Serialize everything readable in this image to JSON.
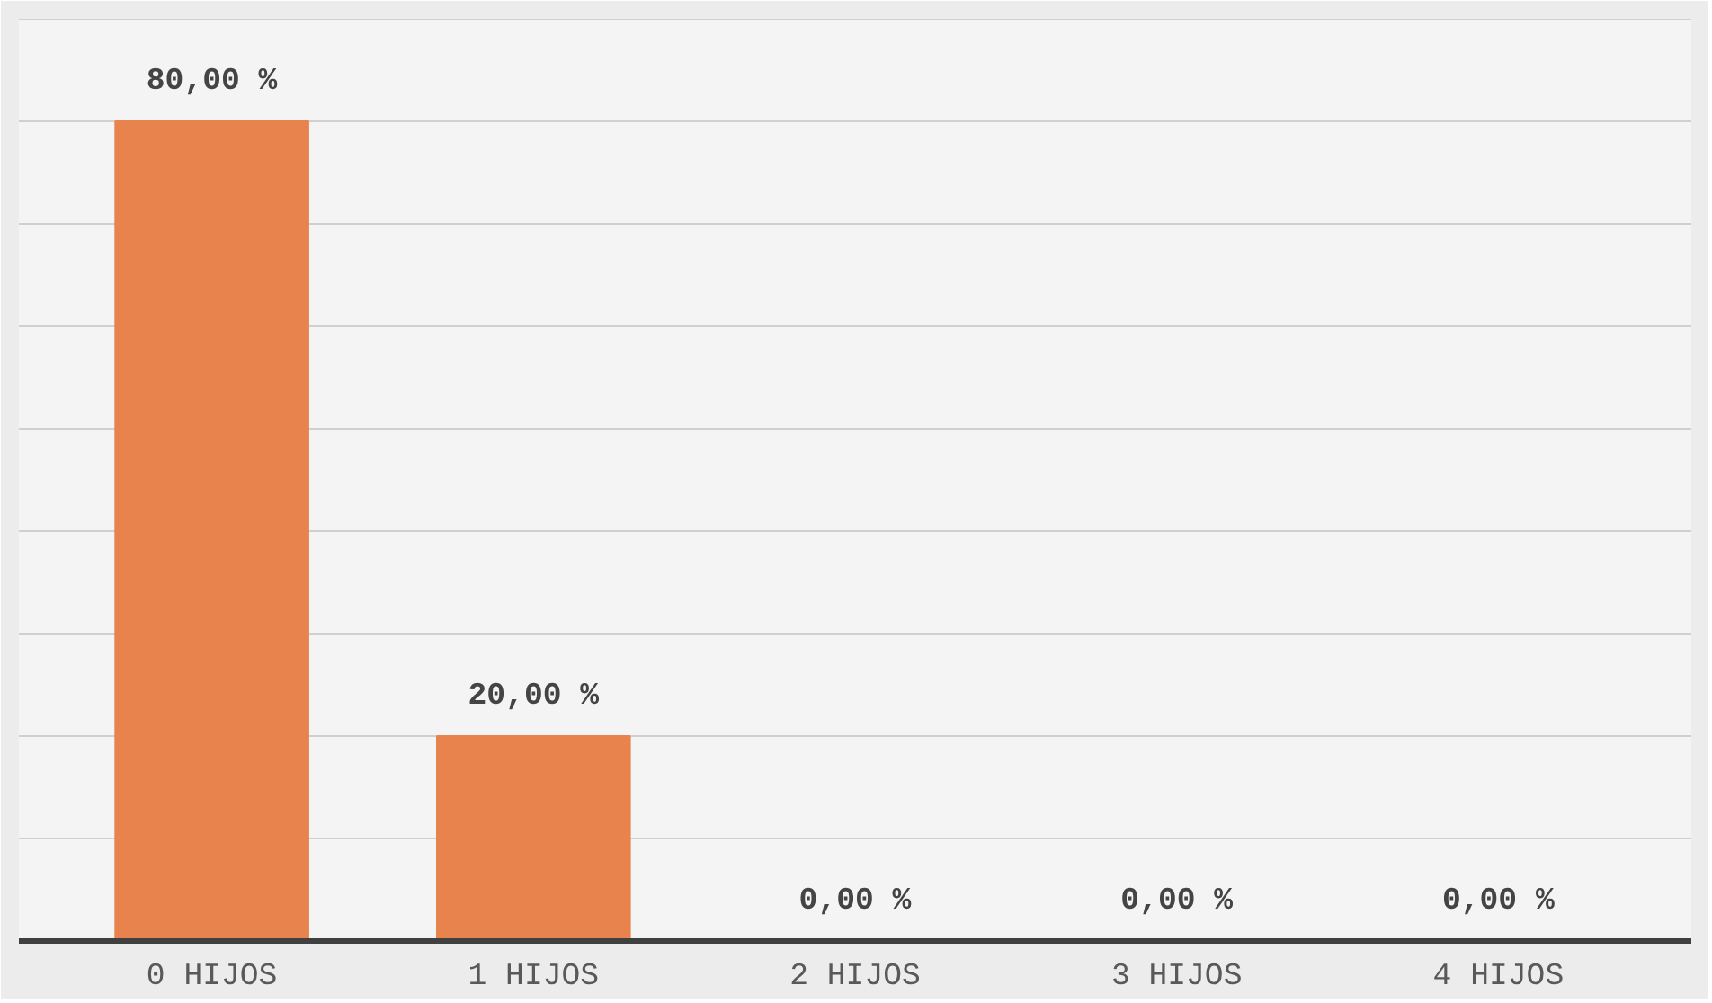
{
  "chart_data": {
    "type": "bar",
    "categories": [
      "0 HIJOS",
      "1 HIJOS",
      "2 HIJOS",
      "3 HIJOS",
      "4 HIJOS"
    ],
    "values": [
      80,
      20,
      0,
      0,
      0
    ],
    "value_labels": [
      "80,00 %",
      "20,00 %",
      "0,00 %",
      "0,00 %",
      "0,00 %"
    ],
    "color": "#e8834e",
    "ylim": [
      0,
      90
    ],
    "yticks": [
      {
        "value": 0,
        "label": null
      },
      {
        "value": 10,
        "label": null
      },
      {
        "value": 20,
        "label": null
      },
      {
        "value": 30,
        "label": null
      },
      {
        "value": 40,
        "label": null
      },
      {
        "value": 50,
        "label": null
      },
      {
        "value": 60,
        "label": null
      },
      {
        "value": 70,
        "label": null
      },
      {
        "value": 80,
        "label": null
      },
      {
        "value": 90,
        "label": null
      }
    ],
    "grid": "y",
    "tick_labels": "x"
  }
}
